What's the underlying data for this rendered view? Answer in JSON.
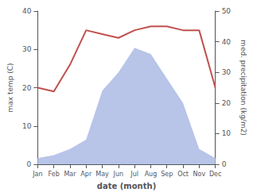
{
  "chart_data": {
    "type": "line",
    "xlabel": "date (month)",
    "ylabel": "max temp (C)",
    "y2label": "med. precipitation (kg/m2)",
    "categories": [
      "Jan",
      "Feb",
      "Mar",
      "Apr",
      "May",
      "Jun",
      "Jul",
      "Aug",
      "Sep",
      "Oct",
      "Nov",
      "Dec"
    ],
    "series": [
      {
        "type": "area",
        "axis": "y2",
        "color": "#b8c4e8",
        "values": [
          2.0,
          3.0,
          5.0,
          8.0,
          24.0,
          30.0,
          38.0,
          36.0,
          28.0,
          20.0,
          5.0,
          2.0
        ]
      },
      {
        "type": "line",
        "color": "#c0504d",
        "values": [
          20.0,
          19.0,
          26.0,
          35.0,
          34.0,
          33.0,
          35.0,
          36.0,
          36.0,
          35.0,
          35.0,
          20.0
        ]
      }
    ],
    "ylim": [
      0,
      40
    ],
    "yticks": [
      0,
      10,
      20,
      30,
      40
    ],
    "y2lim": [
      0,
      50
    ],
    "y2ticks": [
      0,
      10,
      20,
      30,
      40,
      50
    ],
    "grid": false
  }
}
